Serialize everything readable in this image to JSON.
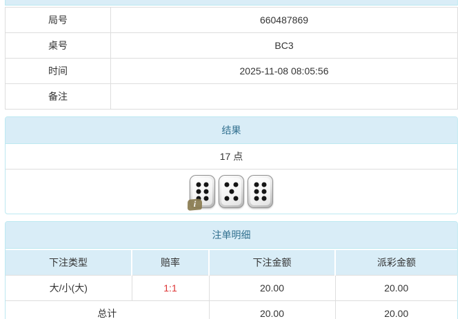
{
  "colors": {
    "heading_bg": "#d9edf7",
    "heading_text": "#31708f",
    "panel_border": "#bce8f1",
    "table_border": "#dddddd",
    "body_text": "#333333",
    "odds_red": "#dd3333",
    "badge_olive": "#8a7c50"
  },
  "info_panel": {
    "rows": [
      {
        "label": "局号",
        "value": "660487869"
      },
      {
        "label": "桌号",
        "value": "BC3"
      },
      {
        "label": "时间",
        "value": "2025-11-08 08:05:56"
      },
      {
        "label": "备注",
        "value": ""
      }
    ]
  },
  "result_panel": {
    "title": "结果",
    "points": "17 点",
    "dice": [
      6,
      5,
      6
    ],
    "info_badge": "i"
  },
  "bets_panel": {
    "title": "注单明细",
    "columns": [
      "下注类型",
      "赔率",
      "下注金额",
      "派彩金额"
    ],
    "rows": [
      {
        "type": "大/小(大)",
        "odds": "1:1",
        "bet": "20.00",
        "payout": "20.00"
      }
    ],
    "total": {
      "label": "总计",
      "bet": "20.00",
      "payout": "20.00"
    }
  }
}
